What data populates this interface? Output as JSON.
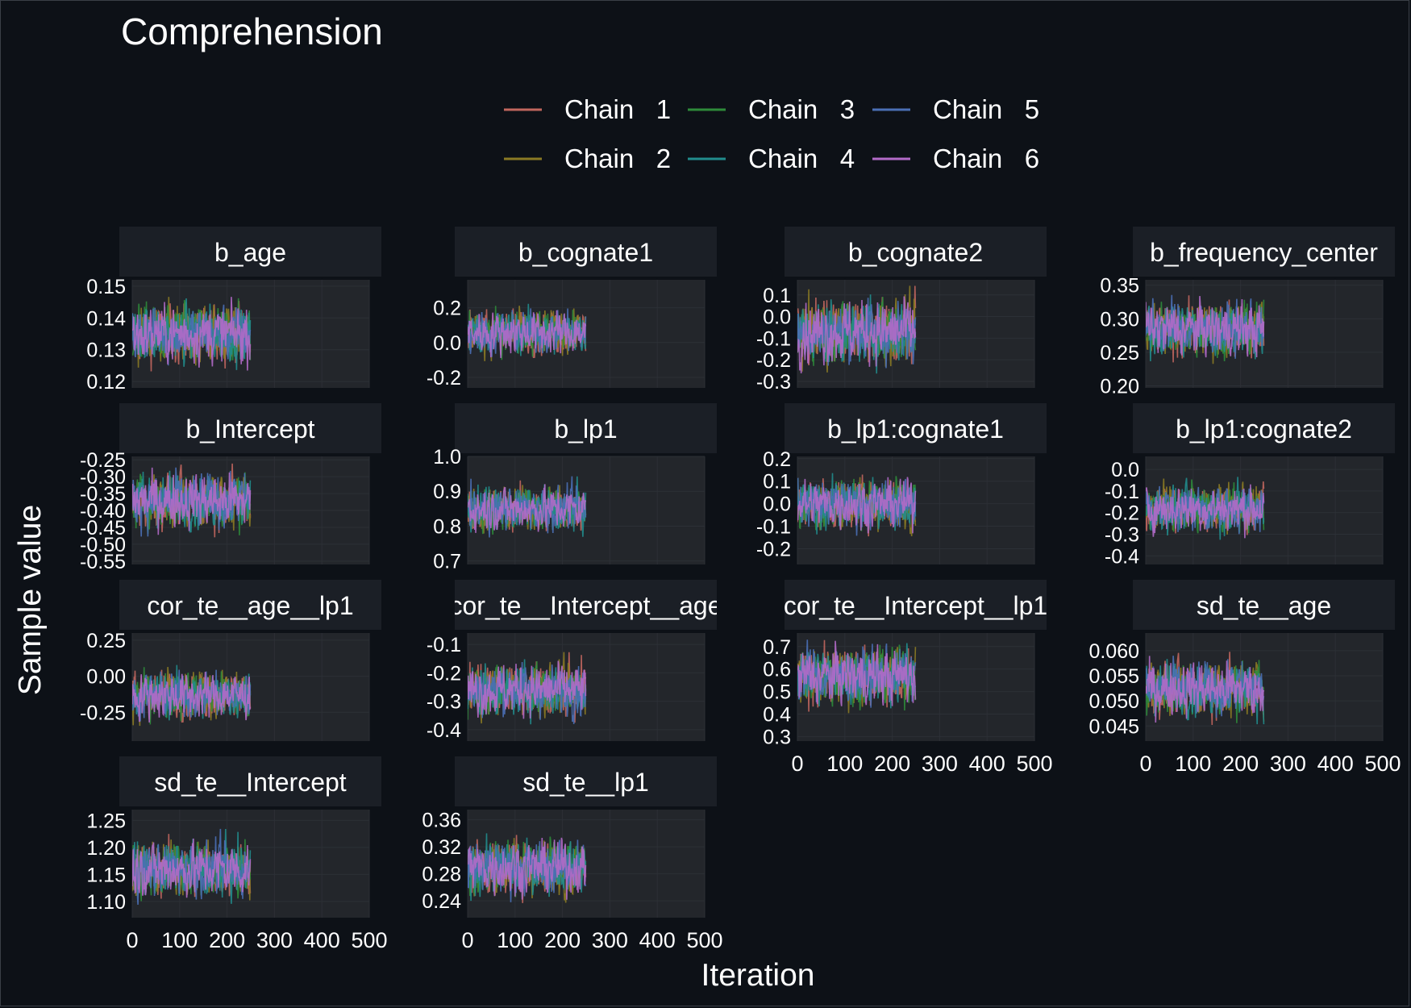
{
  "chart_data": {
    "type": "line",
    "title": "Comprehension",
    "xlabel": "Iteration",
    "ylabel": "Sample value",
    "legend": {
      "position": "top",
      "entries": [
        {
          "label": "Chain   1",
          "color": "#c1665e"
        },
        {
          "label": "Chain   2",
          "color": "#8a7a24"
        },
        {
          "label": "Chain   3",
          "color": "#2e8b3a"
        },
        {
          "label": "Chain   4",
          "color": "#218c8c"
        },
        {
          "label": "Chain   5",
          "color": "#4a6fb5"
        },
        {
          "label": "Chain   6",
          "color": "#b36ac8"
        }
      ]
    },
    "x_range": [
      0,
      500
    ],
    "x_ticks": [
      0,
      100,
      200,
      300,
      400,
      500
    ],
    "x_tick_labels": [
      "0",
      "100",
      "200",
      "300",
      "400",
      "500"
    ],
    "iterations": 250,
    "panels": [
      {
        "name": "b_age",
        "ylim": [
          0.118,
          0.152
        ],
        "yticks": [
          0.12,
          0.13,
          0.14,
          0.15
        ],
        "ytick_labels": [
          "0.12",
          "0.13",
          "0.14",
          "0.15"
        ],
        "mean": 0.135,
        "spread": 0.005
      },
      {
        "name": "b_cognate1",
        "ylim": [
          -0.26,
          0.36
        ],
        "yticks": [
          -0.2,
          0.0,
          0.2
        ],
        "ytick_labels": [
          "-0.2",
          "0.0",
          "0.2"
        ],
        "mean": 0.06,
        "spread": 0.07
      },
      {
        "name": "b_cognate2",
        "ylim": [
          -0.33,
          0.17
        ],
        "yticks": [
          -0.3,
          -0.2,
          -0.1,
          0.0,
          0.1
        ],
        "ytick_labels": [
          "-0.3",
          "-0.2",
          "-0.1",
          "0.0",
          "0.1"
        ],
        "mean": -0.07,
        "spread": 0.08
      },
      {
        "name": "b_frequency_center",
        "ylim": [
          0.197,
          0.358
        ],
        "yticks": [
          0.2,
          0.25,
          0.3,
          0.35
        ],
        "ytick_labels": [
          "0.20",
          "0.25",
          "0.30",
          "0.35"
        ],
        "mean": 0.285,
        "spread": 0.022
      },
      {
        "name": "b_Intercept",
        "ylim": [
          -0.56,
          -0.24
        ],
        "yticks": [
          -0.55,
          -0.5,
          -0.45,
          -0.4,
          -0.35,
          -0.3,
          -0.25
        ],
        "ytick_labels": [
          "-0.55",
          "-0.50",
          "-0.45",
          "-0.40",
          "-0.35",
          "-0.30",
          "-0.25"
        ],
        "mean": -0.37,
        "spread": 0.045
      },
      {
        "name": "b_lp1",
        "ylim": [
          0.69,
          1.0
        ],
        "yticks": [
          0.7,
          0.8,
          0.9,
          1.0
        ],
        "ytick_labels": [
          "0.7",
          "0.8",
          "0.9",
          "1.0"
        ],
        "mean": 0.85,
        "spread": 0.035
      },
      {
        "name": "b_lp1:cognate1",
        "ylim": [
          -0.27,
          0.21
        ],
        "yticks": [
          -0.2,
          -0.1,
          0.0,
          0.1,
          0.2
        ],
        "ytick_labels": [
          "-0.2",
          "-0.1",
          "0.0",
          "0.1",
          "0.2"
        ],
        "mean": 0.0,
        "spread": 0.06
      },
      {
        "name": "b_lp1:cognate2",
        "ylim": [
          -0.44,
          0.06
        ],
        "yticks": [
          -0.4,
          -0.3,
          -0.2,
          -0.1,
          0.0
        ],
        "ytick_labels": [
          "-0.4",
          "-0.3",
          "-0.2",
          "-0.1",
          "0.0"
        ],
        "mean": -0.18,
        "spread": 0.06
      },
      {
        "name": "cor_te__age__lp1",
        "ylim": [
          -0.45,
          0.3
        ],
        "yticks": [
          -0.25,
          0.0,
          0.25
        ],
        "ytick_labels": [
          "-0.25",
          "0.00",
          "0.25"
        ],
        "mean": -0.13,
        "spread": 0.09
      },
      {
        "name": "cor_te__Intercept__age",
        "ylim": [
          -0.44,
          -0.06
        ],
        "yticks": [
          -0.4,
          -0.3,
          -0.2,
          -0.1
        ],
        "ytick_labels": [
          "-0.4",
          "-0.3",
          "-0.2",
          "-0.1"
        ],
        "mean": -0.26,
        "spread": 0.05
      },
      {
        "name": "cor_te__Intercept__lp1",
        "ylim": [
          0.28,
          0.76
        ],
        "yticks": [
          0.3,
          0.4,
          0.5,
          0.6,
          0.7
        ],
        "ytick_labels": [
          "0.3",
          "0.4",
          "0.5",
          "0.6",
          "0.7"
        ],
        "mean": 0.57,
        "spread": 0.07
      },
      {
        "name": "sd_te__age",
        "ylim": [
          0.042,
          0.0635
        ],
        "yticks": [
          0.045,
          0.05,
          0.055,
          0.06
        ],
        "ytick_labels": [
          "0.045",
          "0.050",
          "0.055",
          "0.060"
        ],
        "mean": 0.0525,
        "spread": 0.003
      },
      {
        "name": "sd_te__Intercept",
        "ylim": [
          1.07,
          1.27
        ],
        "yticks": [
          1.1,
          1.15,
          1.2,
          1.25
        ],
        "ytick_labels": [
          "1.10",
          "1.15",
          "1.20",
          "1.25"
        ],
        "mean": 1.16,
        "spread": 0.028
      },
      {
        "name": "sd_te__lp1",
        "ylim": [
          0.215,
          0.375
        ],
        "yticks": [
          0.24,
          0.28,
          0.32,
          0.36
        ],
        "ytick_labels": [
          "0.24",
          "0.28",
          "0.32",
          "0.36"
        ],
        "mean": 0.29,
        "spread": 0.022
      }
    ],
    "colors": {
      "background": "#0d1117",
      "strip": "#1b1f26",
      "panel": "#23262b",
      "grid": "#2c3036",
      "text": "#ffffff"
    }
  }
}
